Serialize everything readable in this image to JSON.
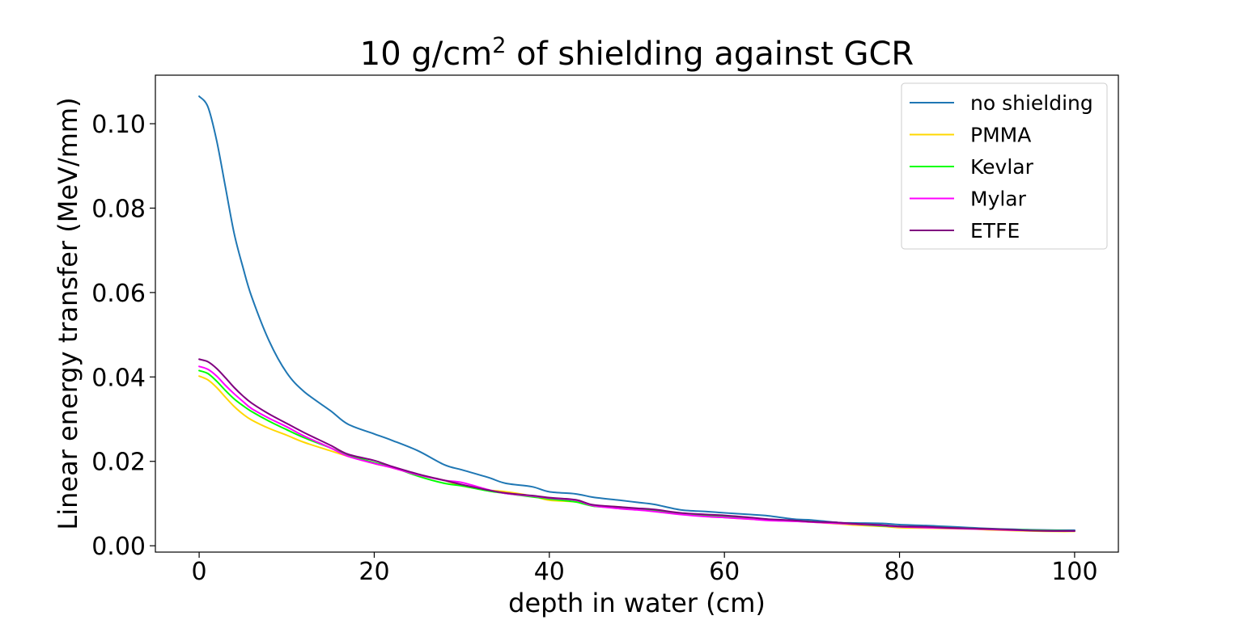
{
  "chart_data": {
    "type": "line",
    "title_main": "10 g/cm",
    "title_sup": "2",
    "title_rest": " of shielding against GCR",
    "xlabel": "depth in water (cm)",
    "ylabel": "Linear energy transfer (MeV/mm)",
    "xlim": [
      -5,
      105
    ],
    "ylim": [
      -0.0015,
      0.1115
    ],
    "xticks": [
      0,
      20,
      40,
      60,
      80,
      100
    ],
    "xtick_labels": [
      "0",
      "20",
      "40",
      "60",
      "80",
      "100"
    ],
    "yticks": [
      0.0,
      0.02,
      0.04,
      0.06,
      0.08,
      0.1
    ],
    "ytick_labels": [
      "0.00",
      "0.02",
      "0.04",
      "0.06",
      "0.08",
      "0.10"
    ],
    "grid": false,
    "legend_position": "upper right",
    "x": [
      0,
      1,
      2,
      3,
      4,
      5,
      6,
      8,
      10,
      12,
      15,
      17,
      20,
      22,
      25,
      28,
      30,
      33,
      35,
      38,
      40,
      43,
      45,
      48,
      50,
      52,
      55,
      58,
      60,
      63,
      65,
      68,
      70,
      73,
      75,
      78,
      80,
      83,
      85,
      88,
      90,
      93,
      95,
      98,
      100
    ],
    "series": [
      {
        "name": "no shielding",
        "color": "#1f77b4",
        "values": [
          0.1065,
          0.104,
          0.096,
          0.085,
          0.074,
          0.066,
          0.059,
          0.0485,
          0.041,
          0.0365,
          0.032,
          0.0288,
          0.0265,
          0.025,
          0.0225,
          0.0192,
          0.018,
          0.0162,
          0.0148,
          0.014,
          0.0128,
          0.0123,
          0.0115,
          0.0108,
          0.0103,
          0.0098,
          0.0085,
          0.0081,
          0.0078,
          0.0074,
          0.0071,
          0.0063,
          0.0061,
          0.0055,
          0.0054,
          0.0053,
          0.005,
          0.0048,
          0.0046,
          0.0043,
          0.0041,
          0.0039,
          0.0038,
          0.0037,
          0.0037
        ]
      },
      {
        "name": "PMMA",
        "color": "#ffd700",
        "values": [
          0.0402,
          0.0393,
          0.0375,
          0.0352,
          0.033,
          0.0312,
          0.0298,
          0.0278,
          0.0262,
          0.0245,
          0.0225,
          0.0212,
          0.0195,
          0.0185,
          0.0168,
          0.0155,
          0.0142,
          0.0132,
          0.0128,
          0.0118,
          0.0108,
          0.0104,
          0.0096,
          0.0092,
          0.0086,
          0.0082,
          0.0076,
          0.0071,
          0.0067,
          0.0063,
          0.0061,
          0.0058,
          0.0056,
          0.0052,
          0.0049,
          0.0046,
          0.0043,
          0.0042,
          0.0041,
          0.004,
          0.0038,
          0.0036,
          0.0035,
          0.0034,
          0.0034
        ]
      },
      {
        "name": "Kevlar",
        "color": "#00ff00",
        "values": [
          0.0415,
          0.0408,
          0.039,
          0.0368,
          0.0348,
          0.0332,
          0.0318,
          0.0295,
          0.0275,
          0.0256,
          0.0232,
          0.0215,
          0.0197,
          0.0187,
          0.0165,
          0.0148,
          0.0142,
          0.013,
          0.0124,
          0.0116,
          0.0111,
          0.0104,
          0.0094,
          0.009,
          0.0087,
          0.0084,
          0.0076,
          0.0071,
          0.0069,
          0.0064,
          0.0061,
          0.0059,
          0.0057,
          0.0053,
          0.0051,
          0.0047,
          0.0045,
          0.0044,
          0.0043,
          0.0041,
          0.004,
          0.0038,
          0.0037,
          0.0036,
          0.0035
        ]
      },
      {
        "name": "Mylar",
        "color": "#ff00ff",
        "values": [
          0.0425,
          0.0418,
          0.0402,
          0.038,
          0.036,
          0.0342,
          0.0325,
          0.0302,
          0.0282,
          0.026,
          0.0232,
          0.0212,
          0.0195,
          0.0185,
          0.0168,
          0.0155,
          0.015,
          0.0133,
          0.0124,
          0.0118,
          0.0113,
          0.0108,
          0.0095,
          0.0088,
          0.0085,
          0.0081,
          0.0074,
          0.0069,
          0.0067,
          0.0063,
          0.006,
          0.0058,
          0.0056,
          0.0053,
          0.0051,
          0.0048,
          0.0045,
          0.0043,
          0.0042,
          0.004,
          0.0039,
          0.0037,
          0.0036,
          0.0035,
          0.0035
        ]
      },
      {
        "name": "ETFE",
        "color": "#800080",
        "values": [
          0.0442,
          0.0436,
          0.042,
          0.0398,
          0.0375,
          0.0355,
          0.0338,
          0.0312,
          0.029,
          0.0268,
          0.0238,
          0.0217,
          0.0202,
          0.0188,
          0.017,
          0.0155,
          0.0145,
          0.0132,
          0.0125,
          0.0119,
          0.0114,
          0.0109,
          0.0097,
          0.0092,
          0.0089,
          0.0086,
          0.0078,
          0.0074,
          0.0072,
          0.0067,
          0.0063,
          0.006,
          0.0057,
          0.0055,
          0.0052,
          0.0049,
          0.0046,
          0.0045,
          0.0043,
          0.0041,
          0.004,
          0.0038,
          0.0036,
          0.0035,
          0.0035
        ]
      }
    ]
  }
}
